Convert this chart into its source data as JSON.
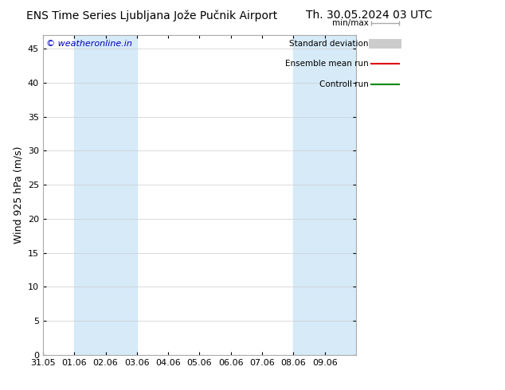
{
  "title_left": "ENS Time Series Ljubljana Jože Pučnik Airport",
  "title_right": "Th. 30.05.2024 03 UTC",
  "ylabel": "Wind 925 hPa (m/s)",
  "watermark": "© weatheronline.in",
  "watermark_color": "#0000bb",
  "ylim": [
    0,
    47
  ],
  "yticks": [
    0,
    5,
    10,
    15,
    20,
    25,
    30,
    35,
    40,
    45
  ],
  "xlim": [
    0,
    10
  ],
  "xtick_labels": [
    "31.05",
    "01.06",
    "02.06",
    "03.06",
    "04.06",
    "05.06",
    "06.06",
    "07.06",
    "08.06",
    "09.06"
  ],
  "xtick_positions": [
    0,
    1,
    2,
    3,
    4,
    5,
    6,
    7,
    8,
    9
  ],
  "shaded_bands": [
    {
      "xmin": 1,
      "xmax": 3,
      "color": "#d6eaf8"
    },
    {
      "xmin": 8,
      "xmax": 10,
      "color": "#d6eaf8"
    }
  ],
  "legend_labels": [
    "min/max",
    "Standard deviation",
    "Ensemble mean run",
    "Controll run"
  ],
  "legend_colors": [
    "#aaaaaa",
    "#cccccc",
    "#dd0000",
    "#008800"
  ],
  "bg_color": "#ffffff",
  "plot_bg_color": "#ffffff",
  "border_color": "#aaaaaa",
  "grid_color": "#cccccc",
  "title_fontsize": 10,
  "ylabel_fontsize": 9,
  "tick_fontsize": 8,
  "legend_fontsize": 7.5,
  "watermark_fontsize": 8
}
